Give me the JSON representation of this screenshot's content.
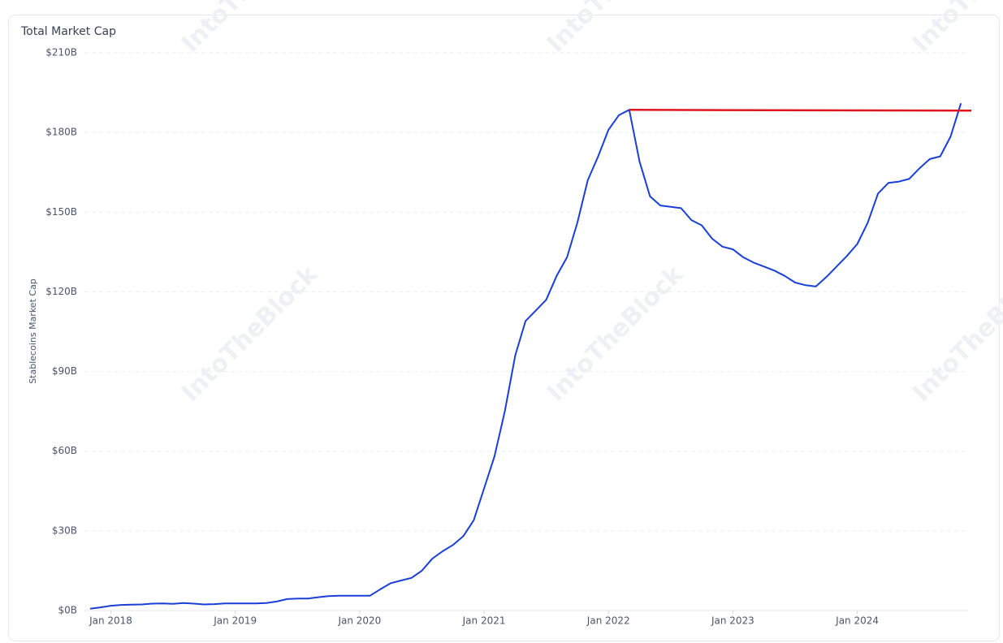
{
  "chart_data": {
    "type": "line",
    "title": "Total Market Cap",
    "y_label": "Stablecoins Market Cap",
    "watermark": "IntoTheBlock",
    "x": [
      "2017-11",
      "2017-12",
      "2018-01",
      "2018-02",
      "2018-03",
      "2018-04",
      "2018-05",
      "2018-06",
      "2018-07",
      "2018-08",
      "2018-09",
      "2018-10",
      "2018-11",
      "2018-12",
      "2019-01",
      "2019-02",
      "2019-03",
      "2019-04",
      "2019-05",
      "2019-06",
      "2019-07",
      "2019-08",
      "2019-09",
      "2019-10",
      "2019-11",
      "2019-12",
      "2020-01",
      "2020-02",
      "2020-03",
      "2020-04",
      "2020-05",
      "2020-06",
      "2020-07",
      "2020-08",
      "2020-09",
      "2020-10",
      "2020-11",
      "2020-12",
      "2021-01",
      "2021-02",
      "2021-03",
      "2021-04",
      "2021-05",
      "2021-06",
      "2021-07",
      "2021-08",
      "2021-09",
      "2021-10",
      "2021-11",
      "2021-12",
      "2022-01",
      "2022-02",
      "2022-03",
      "2022-04",
      "2022-05",
      "2022-06",
      "2022-07",
      "2022-08",
      "2022-09",
      "2022-10",
      "2022-11",
      "2022-12",
      "2023-01",
      "2023-02",
      "2023-03",
      "2023-04",
      "2023-05",
      "2023-06",
      "2023-07",
      "2023-08",
      "2023-09",
      "2023-10",
      "2023-11",
      "2023-12",
      "2024-01",
      "2024-02",
      "2024-03",
      "2024-04",
      "2024-05",
      "2024-06",
      "2024-07",
      "2024-08",
      "2024-09",
      "2024-10",
      "2024-11"
    ],
    "series": [
      {
        "color": "#1a3fd6",
        "values": [
          0.7,
          1.2,
          1.8,
          2.1,
          2.2,
          2.3,
          2.6,
          2.7,
          2.5,
          2.8,
          2.6,
          2.3,
          2.4,
          2.7,
          2.7,
          2.7,
          2.7,
          2.8,
          3.4,
          4.3,
          4.5,
          4.5,
          5.0,
          5.4,
          5.6,
          5.6,
          5.6,
          5.6,
          8.0,
          10.3,
          11.3,
          12.3,
          15.0,
          19.5,
          22.3,
          24.7,
          28.0,
          34,
          46,
          58,
          75,
          96,
          109,
          113,
          117,
          126,
          133,
          146,
          162,
          171,
          181,
          186.5,
          188.5,
          169,
          156,
          152.5,
          152,
          151.5,
          147,
          145,
          140,
          137,
          136,
          133,
          131,
          129.5,
          128,
          126,
          123.5,
          122.5,
          122,
          125.5,
          129.5,
          133.5,
          138,
          146,
          157,
          161,
          161.5,
          162.5,
          166.5,
          170,
          171,
          178.5,
          191
        ]
      }
    ],
    "reference_line": {
      "color": "#e0141e",
      "x": [
        "2022-03",
        "2024-12"
      ],
      "values": [
        188.5,
        188.2
      ]
    },
    "xlim": [
      "2017-11",
      "2024-12"
    ],
    "xticks": [
      {
        "value": "2018-01",
        "label": "Jan 2018"
      },
      {
        "value": "2019-01",
        "label": "Jan 2019"
      },
      {
        "value": "2020-01",
        "label": "Jan 2020"
      },
      {
        "value": "2021-01",
        "label": "Jan 2021"
      },
      {
        "value": "2022-01",
        "label": "Jan 2022"
      },
      {
        "value": "2023-01",
        "label": "Jan 2023"
      },
      {
        "value": "2024-01",
        "label": "Jan 2024"
      }
    ],
    "ylim": [
      0,
      210
    ],
    "yticks": [
      {
        "value": 0,
        "label": "$0B"
      },
      {
        "value": 30,
        "label": "$30B"
      },
      {
        "value": 60,
        "label": "$60B"
      },
      {
        "value": 90,
        "label": "$90B"
      },
      {
        "value": 120,
        "label": "$120B"
      },
      {
        "value": 150,
        "label": "$150B"
      },
      {
        "value": 180,
        "label": "$180B"
      },
      {
        "value": 210,
        "label": "$210B"
      }
    ],
    "grid": true
  }
}
